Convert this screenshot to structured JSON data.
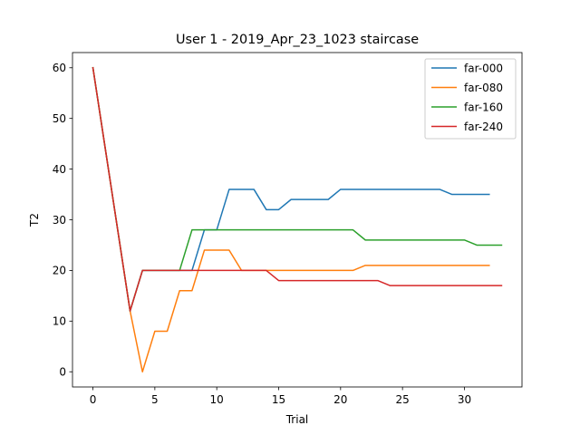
{
  "chart_data": {
    "type": "line",
    "title": "User 1 - 2019_Apr_23_1023 staircase",
    "xlabel": "Trial",
    "ylabel": "T2",
    "xlim": [
      -1.65,
      34.65
    ],
    "ylim": [
      -3,
      63
    ],
    "xticks": [
      0,
      5,
      10,
      15,
      20,
      25,
      30
    ],
    "yticks": [
      0,
      10,
      20,
      30,
      40,
      50,
      60
    ],
    "grid": false,
    "legend_position": "top-right",
    "series": [
      {
        "name": "far-000",
        "color": "#1f77b4",
        "x": [
          0,
          1,
          2,
          3,
          4,
          5,
          6,
          7,
          8,
          9,
          10,
          11,
          12,
          13,
          14,
          15,
          16,
          17,
          18,
          19,
          20,
          21,
          22,
          23,
          24,
          25,
          26,
          27,
          28,
          29,
          30,
          31,
          32
        ],
        "values": [
          60,
          44,
          28,
          12,
          20,
          20,
          20,
          20,
          20,
          28,
          28,
          36,
          36,
          36,
          32,
          32,
          34,
          34,
          34,
          34,
          36,
          36,
          36,
          36,
          36,
          36,
          36,
          36,
          36,
          35,
          35,
          35,
          35
        ]
      },
      {
        "name": "far-080",
        "color": "#ff7f0e",
        "x": [
          0,
          1,
          2,
          3,
          4,
          5,
          6,
          7,
          8,
          9,
          10,
          11,
          12,
          13,
          14,
          15,
          16,
          17,
          18,
          19,
          20,
          21,
          22,
          23,
          24,
          25,
          26,
          27,
          28,
          29,
          30,
          31,
          32
        ],
        "values": [
          60,
          44,
          28,
          12,
          0,
          8,
          8,
          16,
          16,
          24,
          24,
          24,
          20,
          20,
          20,
          20,
          20,
          20,
          20,
          20,
          20,
          20,
          21,
          21,
          21,
          21,
          21,
          21,
          21,
          21,
          21,
          21,
          21
        ]
      },
      {
        "name": "far-160",
        "color": "#2ca02c",
        "x": [
          0,
          1,
          2,
          3,
          4,
          5,
          6,
          7,
          8,
          9,
          10,
          11,
          12,
          13,
          14,
          15,
          16,
          17,
          18,
          19,
          20,
          21,
          22,
          23,
          24,
          25,
          26,
          27,
          28,
          29,
          30,
          31,
          32,
          33
        ],
        "values": [
          60,
          44,
          28,
          12,
          20,
          20,
          20,
          20,
          28,
          28,
          28,
          28,
          28,
          28,
          28,
          28,
          28,
          28,
          28,
          28,
          28,
          28,
          26,
          26,
          26,
          26,
          26,
          26,
          26,
          26,
          26,
          25,
          25,
          25
        ]
      },
      {
        "name": "far-240",
        "color": "#d62728",
        "x": [
          0,
          1,
          2,
          3,
          4,
          5,
          6,
          7,
          8,
          9,
          10,
          11,
          12,
          13,
          14,
          15,
          16,
          17,
          18,
          19,
          20,
          21,
          22,
          23,
          24,
          25,
          26,
          27,
          28,
          29,
          30,
          31,
          32,
          33
        ],
        "values": [
          60,
          44,
          28,
          12,
          20,
          20,
          20,
          20,
          20,
          20,
          20,
          20,
          20,
          20,
          20,
          18,
          18,
          18,
          18,
          18,
          18,
          18,
          18,
          18,
          17,
          17,
          17,
          17,
          17,
          17,
          17,
          17,
          17,
          17
        ]
      }
    ]
  }
}
